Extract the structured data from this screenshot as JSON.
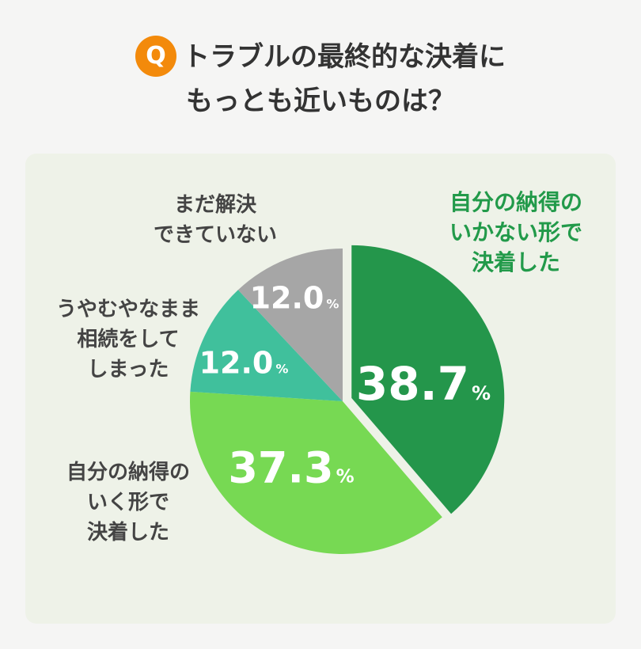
{
  "colors": {
    "background": "#f5f5f4",
    "panel": "#eef2e8",
    "badge": "#f38a0b",
    "title_text": "#333333",
    "label_text": "#444444",
    "highlight_text": "#229a4a",
    "value_text": "#ffffff"
  },
  "title": {
    "badge": "Q",
    "line1": "トラブルの最終的な決着に",
    "line2": "もっとも近いものは？"
  },
  "chart_data": {
    "type": "pie",
    "start": "12 o'clock",
    "direction": "clockwise",
    "unit": "%",
    "slices": [
      {
        "label_lines": [
          "自分の納得の",
          "いかない形で",
          "決着した"
        ],
        "value": 38.7,
        "value_text": "38.7",
        "color": "#24964b",
        "exploded": true,
        "highlight": true
      },
      {
        "label_lines": [
          "自分の納得の",
          "いく形で",
          "決着した"
        ],
        "value": 37.3,
        "value_text": "37.3",
        "color": "#77d953",
        "exploded": false,
        "highlight": false
      },
      {
        "label_lines": [
          "うやむやなまま",
          "相続をして",
          "しまった"
        ],
        "value": 12.0,
        "value_text": "12.0",
        "color": "#40c09c",
        "exploded": false,
        "highlight": false
      },
      {
        "label_lines": [
          "まだ解決",
          "できていない"
        ],
        "value": 12.0,
        "value_text": "12.0",
        "color": "#a6a6a6",
        "exploded": false,
        "highlight": false
      }
    ]
  }
}
